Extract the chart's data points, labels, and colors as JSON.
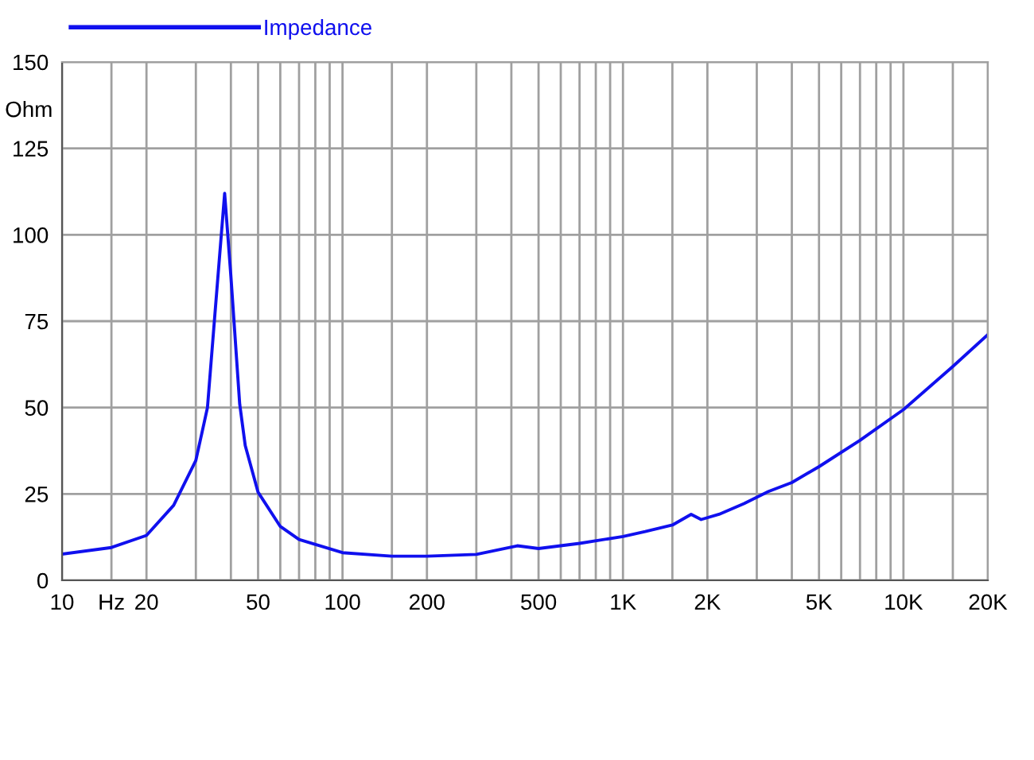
{
  "chart_data": {
    "type": "line",
    "ylabel": "Ohm",
    "log": "x",
    "x": [
      10,
      15,
      20,
      25,
      30,
      33,
      35,
      38,
      40,
      43,
      45,
      50,
      60,
      70,
      100,
      150,
      200,
      300,
      420,
      500,
      700,
      1000,
      1200,
      1500,
      1750,
      1900,
      2200,
      2700,
      3300,
      4000,
      5000,
      7000,
      10000,
      15000,
      20000
    ],
    "series": [
      {
        "name": "Impedance",
        "color": "#1010ee",
        "values": [
          7.6,
          9.5,
          13,
          21.7,
          34.7,
          50,
          76,
          112,
          88,
          51,
          39,
          25.5,
          15.6,
          11.8,
          8,
          7,
          7,
          7.5,
          10,
          9.2,
          10.7,
          12.7,
          14.1,
          16,
          19.1,
          17.6,
          19.1,
          22.2,
          25.7,
          28.3,
          32.9,
          40.5,
          49.4,
          61.9,
          71.1
        ]
      }
    ],
    "xlim": [
      10,
      20000
    ],
    "ylim": [
      0,
      150
    ],
    "xticks": [
      10,
      {
        "value": 15,
        "label": "Hz"
      },
      20,
      {
        "value": 30,
        "label": null
      },
      {
        "value": 40,
        "label": null
      },
      50,
      {
        "value": 60,
        "label": null
      },
      {
        "value": 70,
        "label": null
      },
      {
        "value": 80,
        "label": null
      },
      {
        "value": 90,
        "label": null
      },
      100,
      {
        "value": 150,
        "label": null
      },
      200,
      {
        "value": 300,
        "label": null
      },
      {
        "value": 400,
        "label": null
      },
      500,
      {
        "value": 600,
        "label": null
      },
      {
        "value": 700,
        "label": null
      },
      {
        "value": 800,
        "label": null
      },
      {
        "value": 900,
        "label": null
      },
      {
        "value": 1000,
        "label": "1K"
      },
      {
        "value": 1500,
        "label": null
      },
      {
        "value": 2000,
        "label": "2K"
      },
      {
        "value": 3000,
        "label": null
      },
      {
        "value": 4000,
        "label": null
      },
      {
        "value": 5000,
        "label": "5K"
      },
      {
        "value": 6000,
        "label": null
      },
      {
        "value": 7000,
        "label": null
      },
      {
        "value": 8000,
        "label": null
      },
      {
        "value": 9000,
        "label": null
      },
      {
        "value": 10000,
        "label": "10K"
      },
      {
        "value": 15000,
        "label": null
      },
      {
        "value": 20000,
        "label": "20K"
      }
    ],
    "yticks": [
      0,
      25,
      50,
      75,
      100,
      125,
      150
    ],
    "grid": true,
    "legend": "top left"
  }
}
